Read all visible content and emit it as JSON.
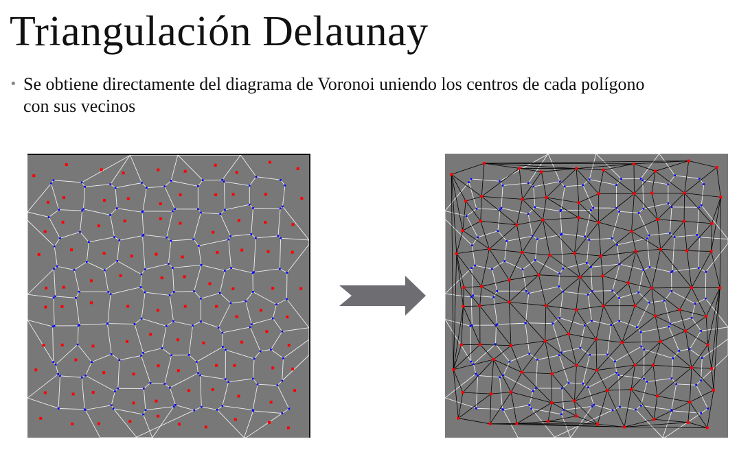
{
  "slide": {
    "title": "Triangulación Delaunay",
    "bullet": "Se obtiene directamente del diagrama de Voronoi uniendo los centros de cada polígono con sus vecinos"
  },
  "colors": {
    "background": "#ffffff",
    "panel": "#787878",
    "site_point": "#ff0000",
    "voronoi_vertex": "#0000ff",
    "voronoi_edge": "#f0f0f0",
    "delaunay_edge": "#000000",
    "arrow": "#6d6d72"
  },
  "figures": {
    "left": "voronoi-diagram",
    "right": "voronoi-with-delaunay-triangulation",
    "transition": "right-arrow"
  }
}
